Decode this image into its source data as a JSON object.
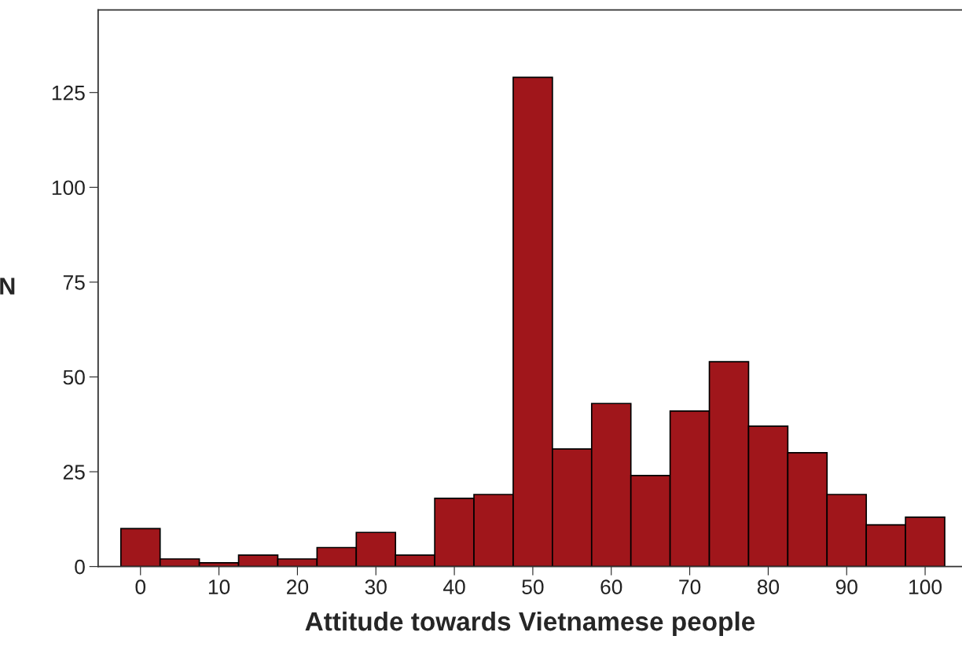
{
  "chart_data": {
    "type": "histogram",
    "xlabel": "Attitude towards Vietnamese people",
    "ylabel": "N",
    "bins": [
      -2.5,
      2.5,
      7.5,
      12.5,
      17.5,
      22.5,
      27.5,
      32.5,
      37.5,
      42.5,
      47.5,
      52.5,
      57.5,
      62.5,
      67.5,
      72.5,
      77.5,
      82.5,
      87.5,
      92.5,
      97.5,
      102.5
    ],
    "values": [
      10,
      2,
      1,
      3,
      2,
      5,
      9,
      3,
      18,
      19,
      129,
      31,
      43,
      24,
      41,
      54,
      37,
      30,
      19,
      11,
      13
    ],
    "color": "#a0161b",
    "xlim": [
      -5.4,
      104.7
    ],
    "ylim": [
      0,
      146.8
    ],
    "xticks": [
      0,
      10,
      20,
      30,
      40,
      50,
      60,
      70,
      80,
      90,
      100
    ],
    "yticks": [
      0,
      25,
      50,
      75,
      100,
      125
    ],
    "grid": false
  }
}
